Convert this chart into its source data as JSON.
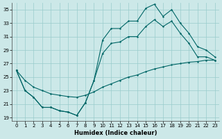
{
  "xlabel": "Humidex (Indice chaleur)",
  "bg_color": "#cce8e8",
  "grid_color": "#99cccc",
  "line_color": "#006666",
  "xlim": [
    -0.5,
    23.5
  ],
  "ylim": [
    18.5,
    36
  ],
  "xticks": [
    0,
    1,
    2,
    3,
    4,
    5,
    6,
    7,
    8,
    9,
    10,
    11,
    12,
    13,
    14,
    15,
    16,
    17,
    18,
    19,
    20,
    21,
    22,
    23
  ],
  "yticks": [
    19,
    21,
    23,
    25,
    27,
    29,
    31,
    33,
    35
  ],
  "line_upper_x": [
    0,
    1,
    2,
    3,
    4,
    5,
    6,
    7,
    8,
    9,
    10,
    11,
    12,
    13,
    14,
    15,
    16,
    17,
    18,
    19,
    20,
    21,
    22,
    23
  ],
  "line_upper_y": [
    26.0,
    23.0,
    22.0,
    20.5,
    20.5,
    20.0,
    19.8,
    19.3,
    21.2,
    24.5,
    30.5,
    32.2,
    32.2,
    33.3,
    33.3,
    35.2,
    35.8,
    34.0,
    35.0,
    33.0,
    31.5,
    29.5,
    29.0,
    28.0
  ],
  "line_lower_x": [
    0,
    1,
    2,
    3,
    4,
    5,
    6,
    7,
    8,
    9,
    10,
    11,
    12,
    13,
    14,
    15,
    16,
    17,
    18,
    19,
    20,
    21,
    22,
    23
  ],
  "line_lower_y": [
    26.0,
    23.0,
    22.0,
    20.5,
    20.5,
    20.0,
    19.8,
    19.3,
    21.2,
    24.5,
    28.5,
    30.0,
    30.2,
    31.0,
    31.0,
    32.5,
    33.5,
    32.5,
    33.3,
    31.5,
    30.0,
    28.0,
    28.0,
    27.5
  ],
  "line_trend_x": [
    0,
    1,
    2,
    3,
    4,
    5,
    6,
    7,
    8,
    9,
    10,
    11,
    12,
    13,
    14,
    15,
    16,
    17,
    18,
    19,
    20,
    21,
    22,
    23
  ],
  "line_trend_y": [
    26.0,
    24.5,
    23.5,
    23.0,
    22.5,
    22.3,
    22.1,
    22.0,
    22.3,
    22.8,
    23.5,
    24.0,
    24.5,
    25.0,
    25.3,
    25.8,
    26.2,
    26.5,
    26.8,
    27.0,
    27.2,
    27.3,
    27.5,
    27.5
  ]
}
